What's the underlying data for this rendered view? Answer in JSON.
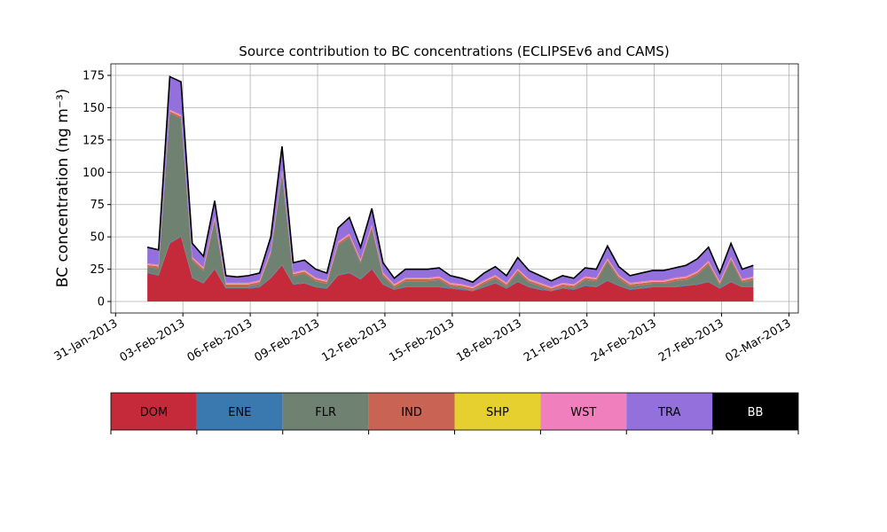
{
  "chart_data": {
    "type": "stacked_area",
    "title": "Source contribution to BC concentrations (ECLIPSEv6 and CAMS)",
    "y_label": "BC concentration (ng m⁻³)",
    "x": [
      "2013-02-01 10:00",
      "2013-02-01 22:00",
      "2013-02-02 10:00",
      "2013-02-02 22:00",
      "2013-02-03 10:00",
      "2013-02-03 22:00",
      "2013-02-04 10:00",
      "2013-02-04 22:00",
      "2013-02-05 10:00",
      "2013-02-05 22:00",
      "2013-02-06 10:00",
      "2013-02-06 22:00",
      "2013-02-07 10:00",
      "2013-02-07 22:00",
      "2013-02-08 10:00",
      "2013-02-08 22:00",
      "2013-02-09 10:00",
      "2013-02-09 22:00",
      "2013-02-10 10:00",
      "2013-02-10 22:00",
      "2013-02-11 10:00",
      "2013-02-11 22:00",
      "2013-02-12 10:00",
      "2013-02-12 22:00",
      "2013-02-13 10:00",
      "2013-02-13 22:00",
      "2013-02-14 10:00",
      "2013-02-14 22:00",
      "2013-02-15 10:00",
      "2013-02-15 22:00",
      "2013-02-16 10:00",
      "2013-02-16 22:00",
      "2013-02-17 10:00",
      "2013-02-17 22:00",
      "2013-02-18 10:00",
      "2013-02-18 22:00",
      "2013-02-19 10:00",
      "2013-02-19 22:00",
      "2013-02-20 10:00",
      "2013-02-20 22:00",
      "2013-02-21 10:00",
      "2013-02-21 22:00",
      "2013-02-22 10:00",
      "2013-02-22 22:00",
      "2013-02-23 10:00",
      "2013-02-23 22:00",
      "2013-02-24 10:00",
      "2013-02-24 22:00",
      "2013-02-25 10:00",
      "2013-02-25 22:00",
      "2013-02-26 10:00",
      "2013-02-26 22:00",
      "2013-02-27 10:00",
      "2013-02-27 22:00",
      "2013-02-28 10:00"
    ],
    "series": [
      {
        "name": "DOM",
        "color": "#c52a3a",
        "values": [
          22,
          20,
          45,
          50,
          18,
          14,
          25,
          10,
          10,
          10,
          11,
          18,
          28,
          13,
          14,
          11,
          10,
          20,
          22,
          17,
          25,
          13,
          9,
          11,
          11,
          11,
          11,
          10,
          9,
          8,
          11,
          14,
          10,
          15,
          11,
          9,
          8,
          10,
          9,
          12,
          11,
          16,
          12,
          9,
          10,
          11,
          11,
          11,
          12,
          13,
          15,
          10,
          15,
          11,
          11
        ]
      },
      {
        "name": "ENE",
        "color": "#3a78b0",
        "values": [
          0.5,
          0.5,
          0.5,
          0.5,
          0.5,
          0.5,
          0.5,
          0.5,
          0.5,
          0.5,
          0.5,
          0.5,
          0.5,
          0.5,
          0.5,
          0.5,
          0.5,
          0.5,
          0.5,
          0.5,
          0.5,
          0.5,
          0.5,
          0.5,
          0.5,
          0.5,
          0.5,
          0.5,
          0.5,
          0.5,
          0.5,
          0.5,
          0.5,
          0.5,
          0.5,
          0.5,
          0.5,
          0.5,
          0.5,
          0.5,
          0.5,
          0.5,
          0.5,
          0.5,
          0.5,
          0.5,
          0.5,
          0.5,
          0.5,
          0.5,
          0.5,
          0.5,
          0.5,
          0.5,
          0.5
        ]
      },
      {
        "name": "FLR",
        "color": "#6f8272",
        "values": [
          4.2,
          5.2,
          100.2,
          91.2,
          13.2,
          9.2,
          37.2,
          1.2,
          1.2,
          1.2,
          2.2,
          18.2,
          70.2,
          6.2,
          7.2,
          4.2,
          3.2,
          23.2,
          27.2,
          12.2,
          31.2,
          6.2,
          1.2,
          4.2,
          4.2,
          4.2,
          5.2,
          1.2,
          1.2,
          0.2,
          2.2,
          3.2,
          1.2,
          7.2,
          3.2,
          2.2,
          0.2,
          1.2,
          1.2,
          4.2,
          4.2,
          14.2,
          5.2,
          2.2,
          2.2,
          2.2,
          2.2,
          4.2,
          4.2,
          7.2,
          13.2,
          2.2,
          16.2,
          3.2,
          5.2
        ]
      },
      {
        "name": "IND",
        "color": "#c96455",
        "values": [
          1.5,
          1.5,
          1.5,
          1.5,
          1.5,
          1.5,
          1.5,
          1.5,
          1.5,
          1.5,
          1.5,
          1.5,
          1.5,
          1.5,
          1.5,
          1.5,
          1.5,
          1.5,
          1.5,
          1.5,
          1.5,
          1.5,
          1.5,
          1.5,
          1.5,
          1.5,
          1.5,
          1.5,
          1.5,
          1.5,
          1.5,
          1.5,
          1.5,
          1.5,
          1.5,
          1.5,
          1.5,
          1.5,
          1.5,
          1.5,
          1.5,
          1.5,
          1.5,
          1.5,
          1.5,
          1.5,
          1.5,
          1.5,
          1.5,
          1.5,
          1.5,
          1.5,
          1.5,
          1.5,
          1.5
        ]
      },
      {
        "name": "SHP",
        "color": "#e6d02f",
        "values": [
          0.3,
          0.3,
          0.3,
          0.3,
          0.3,
          0.3,
          0.3,
          0.3,
          0.3,
          0.3,
          0.3,
          0.3,
          0.3,
          0.3,
          0.3,
          0.3,
          0.3,
          0.3,
          0.3,
          0.3,
          0.3,
          0.3,
          0.3,
          0.3,
          0.3,
          0.3,
          0.3,
          0.3,
          0.3,
          0.3,
          0.3,
          0.3,
          0.3,
          0.3,
          0.3,
          0.3,
          0.3,
          0.3,
          0.3,
          0.3,
          0.3,
          0.3,
          0.3,
          0.3,
          0.3,
          0.3,
          0.3,
          0.3,
          0.3,
          0.3,
          0.3,
          0.3,
          0.3,
          0.3,
          0.3
        ]
      },
      {
        "name": "WST",
        "color": "#f080bd",
        "values": [
          1,
          1,
          1,
          1,
          1,
          1,
          1,
          1,
          1,
          1,
          1,
          1,
          1,
          1,
          1,
          1,
          1,
          1,
          1,
          1,
          1,
          1,
          1,
          1,
          1,
          1,
          1,
          1,
          1,
          1,
          1,
          1,
          1,
          1,
          1,
          1,
          1,
          1,
          1,
          1,
          1,
          1,
          1,
          1,
          1,
          1,
          1,
          1,
          1,
          1,
          1,
          1,
          1,
          1,
          1
        ]
      },
      {
        "name": "TRA",
        "color": "#9370db",
        "values": [
          12,
          11,
          25,
          25,
          10,
          8,
          12,
          5,
          4,
          5,
          5,
          10,
          18,
          7,
          7,
          6,
          5,
          10,
          12,
          9,
          12,
          7,
          4,
          6,
          6,
          6,
          6,
          5,
          4,
          3,
          5,
          6,
          5,
          8,
          6,
          5,
          4,
          5,
          4,
          6,
          6,
          9,
          6,
          5,
          6,
          7,
          7,
          7,
          8,
          9,
          10,
          6,
          10,
          7,
          8
        ]
      },
      {
        "name": "BB",
        "color": "#000000",
        "values": [
          0.5,
          0.5,
          0.5,
          0.5,
          0.5,
          0.5,
          0.5,
          0.5,
          0.5,
          0.5,
          0.5,
          0.5,
          0.5,
          0.5,
          0.5,
          0.5,
          0.5,
          0.5,
          0.5,
          0.5,
          0.5,
          0.5,
          0.5,
          0.5,
          0.5,
          0.5,
          0.5,
          0.5,
          0.5,
          0.5,
          0.5,
          0.5,
          0.5,
          0.5,
          0.5,
          0.5,
          0.5,
          0.5,
          0.5,
          0.5,
          0.5,
          0.5,
          0.5,
          0.5,
          0.5,
          0.5,
          0.5,
          0.5,
          0.5,
          0.5,
          0.5,
          0.5,
          0.5,
          0.5,
          0.5
        ]
      }
    ],
    "xlim": [
      "2013-01-30 19:00",
      "2013-03-02 10:00"
    ],
    "xticks": [
      {
        "value": "2013-01-31 00:00",
        "label": "31-Jan-2013"
      },
      {
        "value": "2013-02-03 00:00",
        "label": "03-Feb-2013"
      },
      {
        "value": "2013-02-06 00:00",
        "label": "06-Feb-2013"
      },
      {
        "value": "2013-02-09 00:00",
        "label": "09-Feb-2013"
      },
      {
        "value": "2013-02-12 00:00",
        "label": "12-Feb-2013"
      },
      {
        "value": "2013-02-15 00:00",
        "label": "15-Feb-2013"
      },
      {
        "value": "2013-02-18 00:00",
        "label": "18-Feb-2013"
      },
      {
        "value": "2013-02-21 00:00",
        "label": "21-Feb-2013"
      },
      {
        "value": "2013-02-24 00:00",
        "label": "24-Feb-2013"
      },
      {
        "value": "2013-02-27 00:00",
        "label": "27-Feb-2013"
      },
      {
        "value": "2013-03-02 00:00",
        "label": "02-Mar-2013"
      }
    ],
    "ylim": [
      -8.9,
      183.9
    ],
    "yticks": [
      0,
      25,
      50,
      75,
      100,
      125,
      150,
      175
    ],
    "grid": true,
    "legend": "bottom"
  }
}
